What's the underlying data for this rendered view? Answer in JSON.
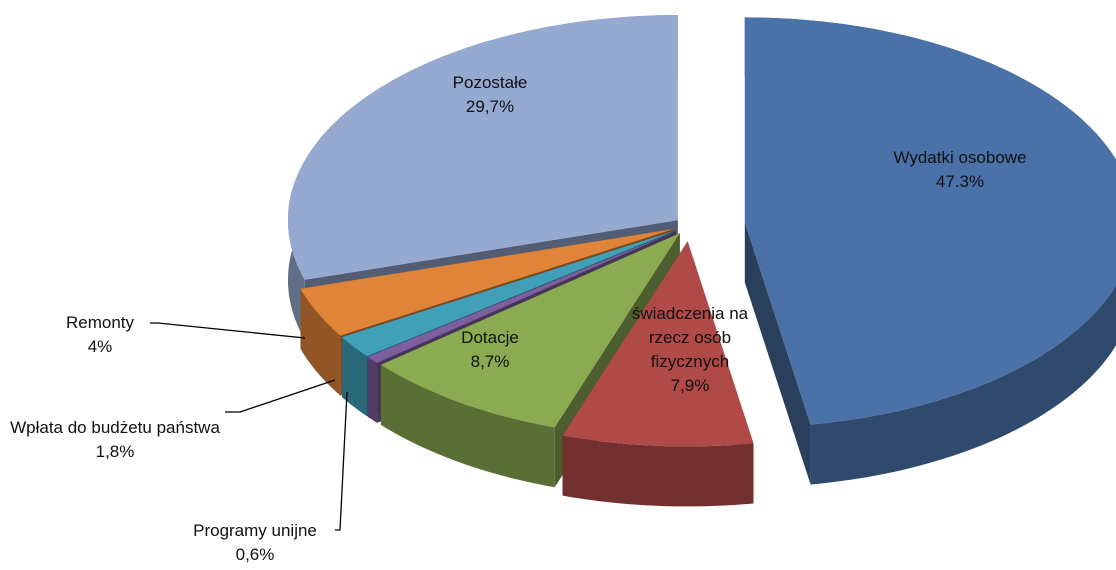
{
  "chart_data": {
    "type": "pie",
    "categories": [
      "Wydatki osobowe",
      "świadczenia na rzecz osób fizycznych",
      "Dotacje",
      "Programy unijne",
      "Wpłata do budżetu państwa",
      "Remonty",
      "Pozostałe"
    ],
    "values": [
      47.3,
      7.9,
      8.7,
      0.6,
      1.8,
      4,
      29.7
    ],
    "value_labels": [
      "47.3%",
      "7,9%",
      "8,7%",
      "0,6%",
      "1,8%",
      "4%",
      "29,7%"
    ],
    "colors": [
      "#4a72a8",
      "#b04a47",
      "#8aab52",
      "#7d5fa0",
      "#3fa0b8",
      "#e0843a",
      "#95a9d1"
    ]
  }
}
